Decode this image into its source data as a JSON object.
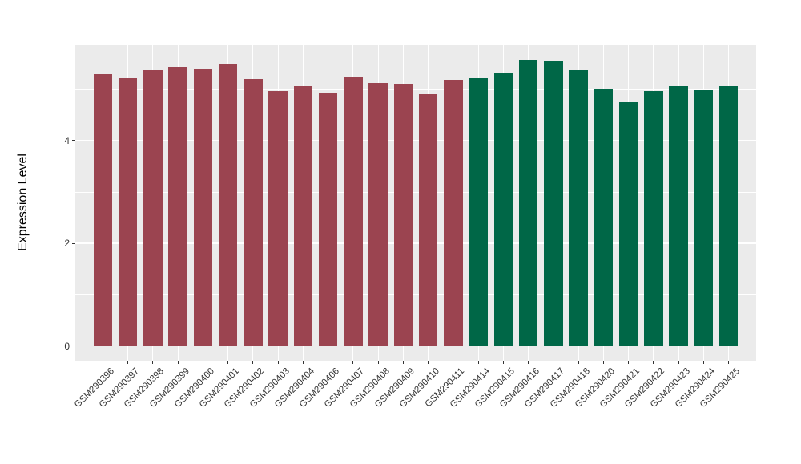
{
  "figure": {
    "background_color": "#FFFFFF",
    "panel_color": "#EBEBEB",
    "gridline_color": "#FFFFFF",
    "axis_text_color": "#333333",
    "axis_title_color": "#000000",
    "group_colors": {
      "left_group": "#9B4450",
      "right_group": "#006747"
    }
  },
  "chart_data": {
    "type": "bar",
    "title": "",
    "xlabel": "",
    "ylabel": "Expression Level",
    "ylim": [
      0,
      5.85
    ],
    "grid": "on",
    "legend_position": "none",
    "yticks": [
      {
        "label": "0",
        "value": 0
      },
      {
        "label": "2",
        "value": 2
      },
      {
        "label": "4",
        "value": 4
      }
    ],
    "minor_gridlines": [
      1,
      3,
      5
    ],
    "bars": [
      {
        "label": "GSM290396",
        "value": 5.3,
        "color": "#9B4450"
      },
      {
        "label": "GSM290397",
        "value": 5.21,
        "color": "#9B4450"
      },
      {
        "label": "GSM290398",
        "value": 5.36,
        "color": "#9B4450"
      },
      {
        "label": "GSM290399",
        "value": 5.42,
        "color": "#9B4450"
      },
      {
        "label": "GSM290400",
        "value": 5.4,
        "color": "#9B4450"
      },
      {
        "label": "GSM290401",
        "value": 5.49,
        "color": "#9B4450"
      },
      {
        "label": "GSM290402",
        "value": 5.19,
        "color": "#9B4450"
      },
      {
        "label": "GSM290403",
        "value": 4.95,
        "color": "#9B4450"
      },
      {
        "label": "GSM290404",
        "value": 5.05,
        "color": "#9B4450"
      },
      {
        "label": "GSM290406",
        "value": 4.93,
        "color": "#9B4450"
      },
      {
        "label": "GSM290407",
        "value": 5.24,
        "color": "#9B4450"
      },
      {
        "label": "GSM290408",
        "value": 5.11,
        "color": "#9B4450"
      },
      {
        "label": "GSM290409",
        "value": 5.1,
        "color": "#9B4450"
      },
      {
        "label": "GSM290410",
        "value": 4.9,
        "color": "#9B4450"
      },
      {
        "label": "GSM290411",
        "value": 5.17,
        "color": "#9B4450"
      },
      {
        "label": "GSM290414",
        "value": 5.22,
        "color": "#006747"
      },
      {
        "label": "GSM290415",
        "value": 5.32,
        "color": "#006747"
      },
      {
        "label": "GSM290416",
        "value": 5.57,
        "color": "#006747"
      },
      {
        "label": "GSM290417",
        "value": 5.55,
        "color": "#006747"
      },
      {
        "label": "GSM290418",
        "value": 5.36,
        "color": "#006747"
      },
      {
        "label": "GSM290420",
        "value": 5.0,
        "color": "#006747"
      },
      {
        "label": "GSM290421",
        "value": 4.74,
        "color": "#006747"
      },
      {
        "label": "GSM290422",
        "value": 4.95,
        "color": "#006747"
      },
      {
        "label": "GSM290423",
        "value": 5.07,
        "color": "#006747"
      },
      {
        "label": "GSM290424",
        "value": 4.98,
        "color": "#006747"
      },
      {
        "label": "GSM290425",
        "value": 5.07,
        "color": "#006747"
      }
    ]
  }
}
